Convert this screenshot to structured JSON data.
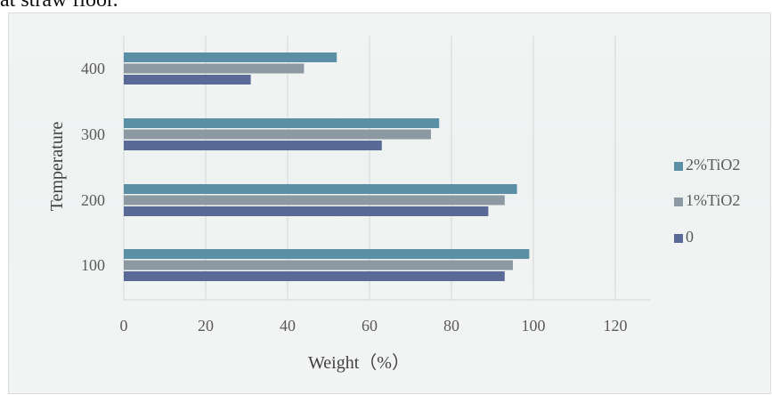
{
  "page": {
    "top_text": "at straw floor."
  },
  "colors": {
    "series_2pct": "#5b8fa5",
    "series_1pct": "#8c99a3",
    "series_0": "#5a6a96",
    "grid": "#d3d7d7",
    "text": "#5a5a5a"
  },
  "chart_data": {
    "type": "bar",
    "orientation": "horizontal",
    "title": "",
    "xlabel": "Weight（%）",
    "ylabel": "Temperature",
    "categories": [
      "100",
      "200",
      "300",
      "400"
    ],
    "series": [
      {
        "name": "2%TiO2",
        "values": [
          99,
          96,
          77,
          52
        ]
      },
      {
        "name": "1%TiO2",
        "values": [
          95,
          93,
          75,
          44
        ]
      },
      {
        "name": "0",
        "values": [
          93,
          89,
          63,
          31
        ]
      }
    ],
    "xlim": [
      0,
      120
    ],
    "xticks": [
      "0",
      "20",
      "40",
      "60",
      "80",
      "100",
      "120"
    ],
    "grid": true,
    "legend": "right"
  }
}
